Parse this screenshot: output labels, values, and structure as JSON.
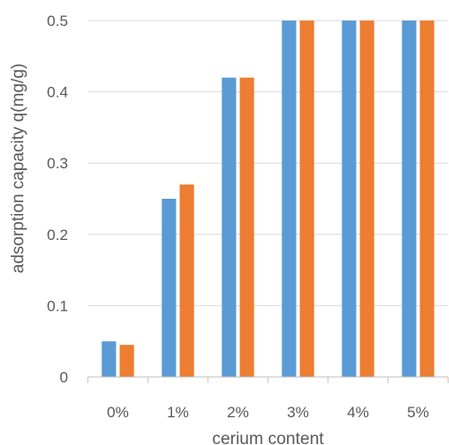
{
  "chart_data": {
    "type": "bar",
    "categories": [
      "0%",
      "1%",
      "2%",
      "3%",
      "4%",
      "5%"
    ],
    "series": [
      {
        "values": [
          0.05,
          0.25,
          0.42,
          0.5,
          0.5,
          0.5
        ],
        "color": "#5B9BD5"
      },
      {
        "values": [
          0.045,
          0.27,
          0.42,
          0.5,
          0.5,
          0.5
        ],
        "color": "#ED7D31"
      }
    ],
    "title": "",
    "xlabel": "cerium content",
    "ylabel": "adsorption capacity q(mg/g)",
    "ylim": [
      0,
      0.5
    ],
    "yticks": [
      "0",
      "0.1",
      "0.2",
      "0.3",
      "0.4",
      "0.5"
    ],
    "grid": true,
    "legend": "none",
    "gridColor": "#D9D9D9",
    "axisColor": "#BFBFBF"
  }
}
